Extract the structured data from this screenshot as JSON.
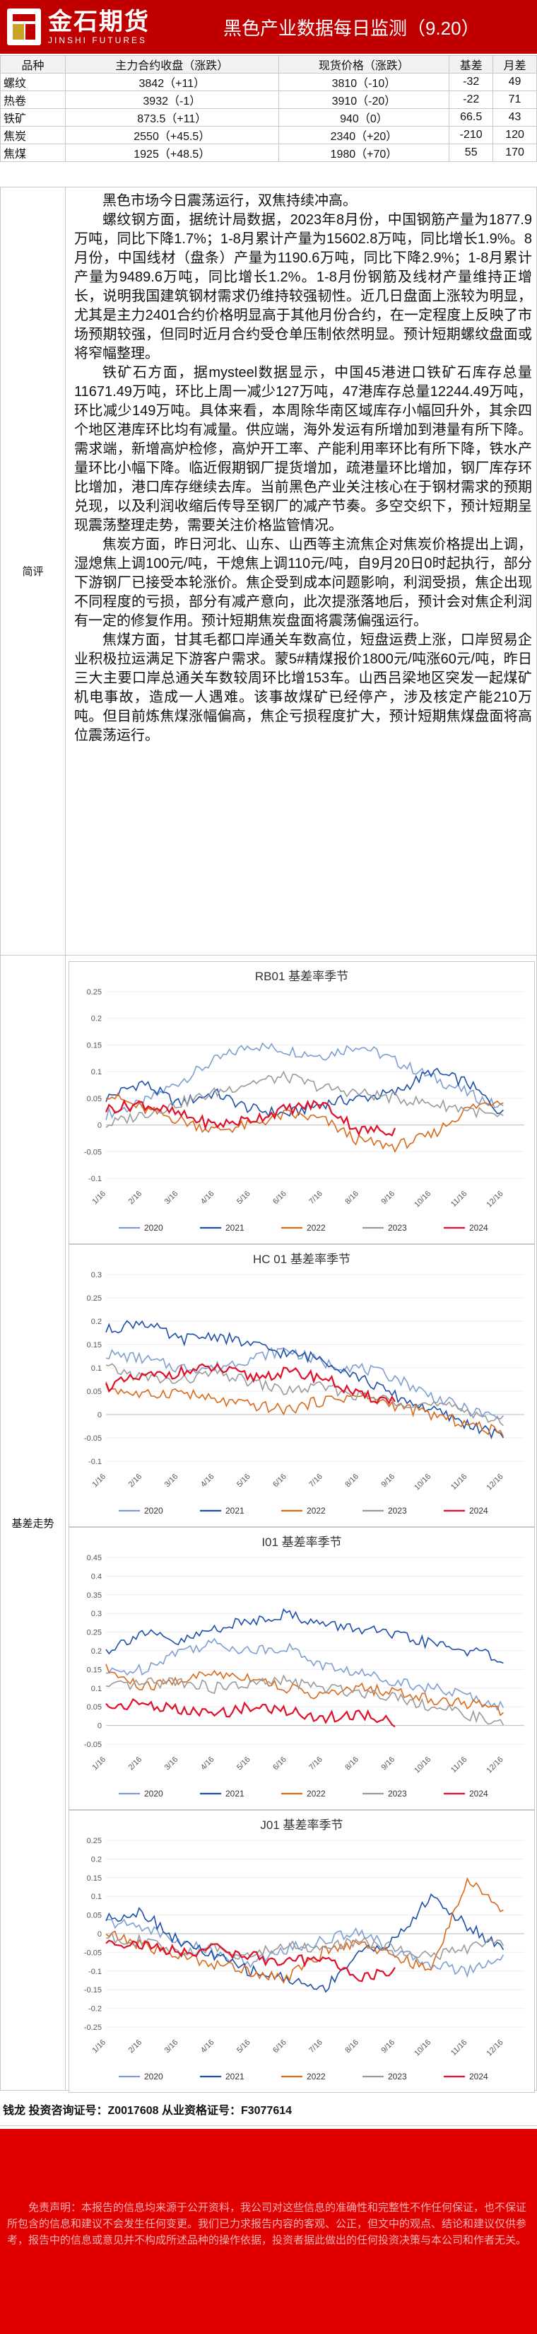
{
  "header": {
    "logo_cn": "金石期货",
    "logo_en": "JINSHI FUTURES",
    "title": "黑色产业数据每日监测（9.20）"
  },
  "price_table": {
    "headers": [
      "品种",
      "主力合约收盘（涨跌）",
      "现货价格（涨跌）",
      "基差",
      "月差"
    ],
    "rows": [
      [
        "螺纹",
        "3842（+11）",
        "3810（-10）",
        "-32",
        "49"
      ],
      [
        "热卷",
        "3932（-1）",
        "3910（-20）",
        "-22",
        "71"
      ],
      [
        "铁矿",
        "873.5（+11）",
        "940（0）",
        "66.5",
        "43"
      ],
      [
        "焦炭",
        "2550（+45.5）",
        "2340（+20）",
        "-210",
        "120"
      ],
      [
        "焦煤",
        "1925（+48.5）",
        "1980（+70）",
        "55",
        "170"
      ]
    ]
  },
  "comment": {
    "label": "简评",
    "paragraphs": [
      "黑色市场今日震荡运行，双焦持续冲高。",
      "螺纹钢方面，据统计局数据，2023年8月份，中国钢筋产量为1877.9万吨，同比下降1.7%；1-8月累计产量为15602.8万吨，同比增长1.9%。8月份，中国线材（盘条）产量为1190.6万吨，同比下降2.9%；1-8月累计产量为9489.6万吨，同比增长1.2%。1-8月份钢筋及线材产量维持正增长，说明我国建筑钢材需求仍维持较强韧性。近几日盘面上涨较为明显，尤其是主力2401合约价格明显高于其他月份合约，在一定程度上反映了市场预期较强，但同时近月合约受仓单压制依然明显。预计短期螺纹盘面或将窄幅整理。",
      "铁矿石方面，据mysteel数据显示，中国45港进口铁矿石库存总量11671.49万吨，环比上周一减少127万吨，47港库存总量12244.49万吨，环比减少149万吨。具体来看，本周除华南区域库存小幅回升外，其余四个地区港库环比均有减量。供应端，海外发运有所增加到港量有所下降。需求端，新增高炉检修，高炉开工率、产能利用率环比有所下降，铁水产量环比小幅下降。临近假期钢厂提货增加，疏港量环比增加，钢厂库存环比增加，港口库存继续去库。当前黑色产业关注核心在于钢材需求的预期兑现，以及利润收缩后传导至钢厂的减产节奏。多空交织下，预计短期呈现震荡整理走势，需要关注价格监管情况。",
      "焦炭方面，昨日河北、山东、山西等主流焦企对焦炭价格提出上调，湿熄焦上调100元/吨，干熄焦上调110元/吨，自9月20日0时起执行，部分下游钢厂已接受本轮涨价。焦企受到成本问题影响，利润受损，焦企出现不同程度的亏损，部分有减产意向，此次提涨落地后，预计会对焦企利润有一定的修复作用。预计短期焦炭盘面将震荡偏强运行。",
      "焦煤方面，甘其毛都口岸通关车数高位，短盘运费上涨，口岸贸易企业积极拉运满足下游客户需求。蒙5#精煤报价1800元/吨涨60元/吨，昨日三大主要口岸总通关车数较周环比增153车。山西吕梁地区突发一起煤矿机电事故，造成一人遇难。该事故煤矿已经停产，涉及核定产能210万吨。但目前炼焦煤涨幅偏高，焦企亏损程度扩大，预计短期焦煤盘面将高位震荡运行。"
    ]
  },
  "charts_section": {
    "label": "基差走势",
    "month_ticks": [
      "1/16",
      "2/16",
      "3/16",
      "4/16",
      "5/16",
      "6/16",
      "7/16",
      "8/16",
      "9/16",
      "10/16",
      "11/16",
      "12/16"
    ],
    "years": [
      "2020",
      "2021",
      "2022",
      "2023",
      "2024"
    ],
    "colors": {
      "2020": "#7f9fd0",
      "2021": "#1f4fa8",
      "2022": "#d96a1a",
      "2023": "#9a9a9a",
      "2024": "#e0102a"
    }
  },
  "chart_data": [
    {
      "type": "line",
      "title": "RB01 基差率季节",
      "xlabel": "",
      "ylabel": "",
      "ylim": [
        -0.1,
        0.25
      ],
      "yticks": [
        "-0.1",
        "-0.05",
        "0",
        "0.05",
        "0.1",
        "0.15",
        "0.2",
        "0.25"
      ],
      "series": [
        {
          "name": "2020",
          "values": [
            0.02,
            0.04,
            0.08,
            0.12,
            0.15,
            0.14,
            0.13,
            0.15,
            0.12,
            0.09,
            0.06,
            0.03
          ]
        },
        {
          "name": "2021",
          "values": [
            0.05,
            0.08,
            0.04,
            0.06,
            0.03,
            0.02,
            0.04,
            0.05,
            0.06,
            0.1,
            0.08,
            0.02
          ]
        },
        {
          "name": "2022",
          "values": [
            0.06,
            0.03,
            0.01,
            -0.01,
            0.0,
            0.02,
            0.01,
            -0.03,
            -0.04,
            -0.02,
            0.03,
            0.05
          ]
        },
        {
          "name": "2023",
          "values": [
            0.0,
            0.02,
            0.04,
            0.06,
            0.08,
            0.09,
            0.07,
            0.06,
            0.05,
            0.04,
            0.03,
            0.01
          ]
        },
        {
          "name": "2024",
          "values": [
            0.03,
            0.04,
            0.02,
            0.0,
            0.01,
            0.03,
            0.04,
            -0.01,
            -0.01
          ]
        }
      ]
    },
    {
      "type": "line",
      "title": "HC 01 基差率季节",
      "xlabel": "",
      "ylabel": "",
      "ylim": [
        -0.1,
        0.3
      ],
      "yticks": [
        "-0.1",
        "-0.05",
        "0",
        "0.05",
        "0.1",
        "0.15",
        "0.2",
        "0.25",
        "0.3"
      ],
      "series": [
        {
          "name": "2020",
          "values": [
            0.13,
            0.12,
            0.1,
            0.1,
            0.12,
            0.14,
            0.11,
            0.1,
            0.08,
            0.04,
            0.01,
            -0.01
          ]
        },
        {
          "name": "2021",
          "values": [
            0.18,
            0.2,
            0.16,
            0.17,
            0.15,
            0.13,
            0.12,
            0.08,
            0.04,
            0.01,
            -0.02,
            -0.05
          ]
        },
        {
          "name": "2022",
          "values": [
            0.06,
            0.04,
            0.05,
            0.03,
            0.02,
            0.01,
            0.03,
            0.04,
            0.02,
            0.0,
            -0.02,
            -0.04
          ]
        },
        {
          "name": "2023",
          "values": [
            0.1,
            0.08,
            0.07,
            0.09,
            0.07,
            0.05,
            0.06,
            0.04,
            0.03,
            0.02,
            0.01,
            -0.02
          ]
        },
        {
          "name": "2024",
          "values": [
            0.06,
            0.08,
            0.09,
            0.1,
            0.08,
            0.09,
            0.08,
            0.04,
            0.03
          ]
        }
      ]
    },
    {
      "type": "line",
      "title": "I01 基差率季节",
      "xlabel": "",
      "ylabel": "",
      "ylim": [
        -0.05,
        0.45
      ],
      "yticks": [
        "-0.05",
        "0",
        "0.05",
        "0.1",
        "0.15",
        "0.2",
        "0.25",
        "0.3",
        "0.35",
        "0.4",
        "0.45"
      ],
      "series": [
        {
          "name": "2020",
          "values": [
            0.14,
            0.15,
            0.2,
            0.22,
            0.2,
            0.21,
            0.16,
            0.14,
            0.12,
            0.1,
            0.08,
            0.05
          ]
        },
        {
          "name": "2021",
          "values": [
            0.2,
            0.25,
            0.22,
            0.26,
            0.28,
            0.3,
            0.27,
            0.26,
            0.24,
            0.22,
            0.2,
            0.18
          ]
        },
        {
          "name": "2022",
          "values": [
            0.15,
            0.1,
            0.12,
            0.14,
            0.13,
            0.1,
            0.08,
            0.1,
            0.09,
            0.07,
            0.06,
            0.04
          ]
        },
        {
          "name": "2023",
          "values": [
            0.1,
            0.11,
            0.12,
            0.1,
            0.11,
            0.12,
            0.1,
            0.09,
            0.08,
            0.05,
            0.03,
            0.0
          ]
        },
        {
          "name": "2024",
          "values": [
            0.05,
            0.06,
            0.04,
            0.03,
            0.05,
            0.04,
            0.02,
            0.03,
            0.01
          ]
        }
      ]
    },
    {
      "type": "line",
      "title": "J01 基差率季节",
      "xlabel": "",
      "ylabel": "",
      "ylim": [
        -0.25,
        0.25
      ],
      "yticks": [
        "-0.25",
        "-0.2",
        "-0.15",
        "-0.1",
        "-0.05",
        "0",
        "0.05",
        "0.1",
        "0.15",
        "0.2",
        "0.25"
      ],
      "series": [
        {
          "name": "2020",
          "values": [
            0.03,
            0.02,
            -0.02,
            -0.05,
            -0.08,
            -0.04,
            -0.02,
            0.01,
            -0.05,
            -0.08,
            -0.1,
            -0.06
          ]
        },
        {
          "name": "2021",
          "values": [
            0.04,
            0.06,
            -0.02,
            -0.06,
            -0.1,
            -0.12,
            -0.15,
            -0.05,
            -0.02,
            0.1,
            0.02,
            -0.04
          ]
        },
        {
          "name": "2022",
          "values": [
            0.0,
            -0.03,
            -0.06,
            -0.08,
            -0.1,
            -0.12,
            -0.05,
            -0.02,
            -0.06,
            -0.1,
            0.15,
            0.05
          ]
        },
        {
          "name": "2023",
          "values": [
            -0.01,
            -0.02,
            -0.05,
            -0.04,
            -0.06,
            -0.03,
            -0.04,
            -0.02,
            -0.04,
            -0.06,
            -0.04,
            -0.02
          ]
        },
        {
          "name": "2024",
          "values": [
            -0.02,
            -0.03,
            -0.05,
            -0.04,
            -0.06,
            -0.08,
            -0.06,
            -0.12,
            -0.1
          ]
        }
      ]
    }
  ],
  "footer": {
    "cert": "钱龙 投资咨询证号：Z0017608 从业资格证号：F3077614"
  },
  "disclaimer": "免责声明：本报告的信息均来源于公开资料，我公司对这些信息的准确性和完整性不作任何保证，也不保证所包含的信息和建议不会发生任何变更。我们已力求报告内容的客观、公正，但文中的观点、结论和建议仅供参考，报告中的信息或意见并不构成所述品种的操作依据，投资者据此做出的任何投资决策与本公司和作者无关。"
}
